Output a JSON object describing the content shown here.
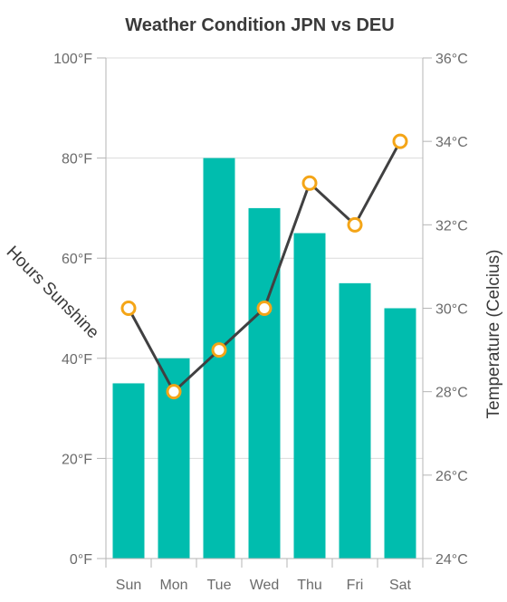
{
  "chart_data": {
    "type": "bar",
    "title": "Weather Condition JPN vs DEU",
    "categories": [
      "Sun",
      "Mon",
      "Tue",
      "Wed",
      "Thu",
      "Fri",
      "Sat"
    ],
    "y_left": {
      "label": "Hours Sunshine",
      "ticks": [
        "0°F",
        "20°F",
        "40°F",
        "60°F",
        "80°F",
        "100°F"
      ],
      "range": [
        0,
        100
      ]
    },
    "y_right": {
      "label": "Temperature (Celcius)",
      "ticks": [
        "24°C",
        "26°C",
        "28°C",
        "30°C",
        "32°C",
        "34°C",
        "36°C"
      ],
      "range": [
        24,
        36
      ]
    },
    "series": [
      {
        "type": "bar",
        "axis": "left",
        "color": "#00bdae",
        "values": [
          35,
          40,
          80,
          70,
          65,
          55,
          50
        ]
      },
      {
        "type": "line",
        "axis": "right",
        "color": "#404041",
        "marker_color": "#f4a517",
        "values": [
          30,
          28,
          29,
          30,
          33,
          32,
          34
        ]
      }
    ],
    "grid": true
  }
}
